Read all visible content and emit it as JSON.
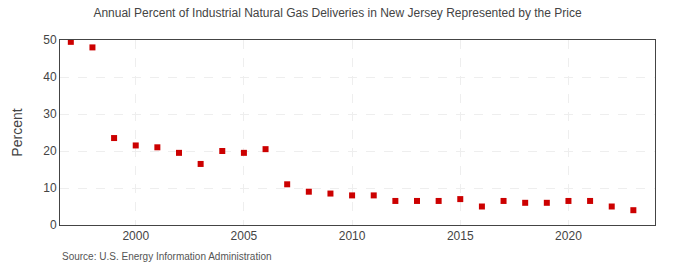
{
  "chart_data": {
    "type": "scatter",
    "title": "Annual Percent of Industrial Natural Gas Deliveries in New Jersey Represented by the Price",
    "ylabel": "Percent",
    "annotations": [
      "Source: U.S. Energy Information Administration"
    ],
    "x": [
      1997,
      1998,
      1999,
      2000,
      2001,
      2002,
      2003,
      2004,
      2005,
      2006,
      2007,
      2008,
      2009,
      2010,
      2011,
      2012,
      2013,
      2014,
      2015,
      2016,
      2017,
      2018,
      2019,
      2020,
      2021,
      2022,
      2023
    ],
    "values": [
      49.5,
      48.0,
      23.5,
      21.5,
      21.0,
      19.5,
      16.5,
      20.0,
      19.5,
      20.5,
      11.0,
      9.0,
      8.5,
      8.0,
      8.0,
      6.5,
      6.5,
      6.5,
      7.0,
      5.0,
      6.5,
      6.0,
      6.0,
      6.5,
      6.5,
      5.0,
      4.0
    ],
    "color": "#cc0000",
    "marker": "square",
    "xlim": [
      1996.5,
      2024
    ],
    "xticks": [
      2000,
      2005,
      2010,
      2015,
      2020
    ],
    "ylim": [
      0,
      50
    ],
    "yticks": [
      0,
      10,
      20,
      30,
      40,
      50
    ],
    "grid": true
  }
}
